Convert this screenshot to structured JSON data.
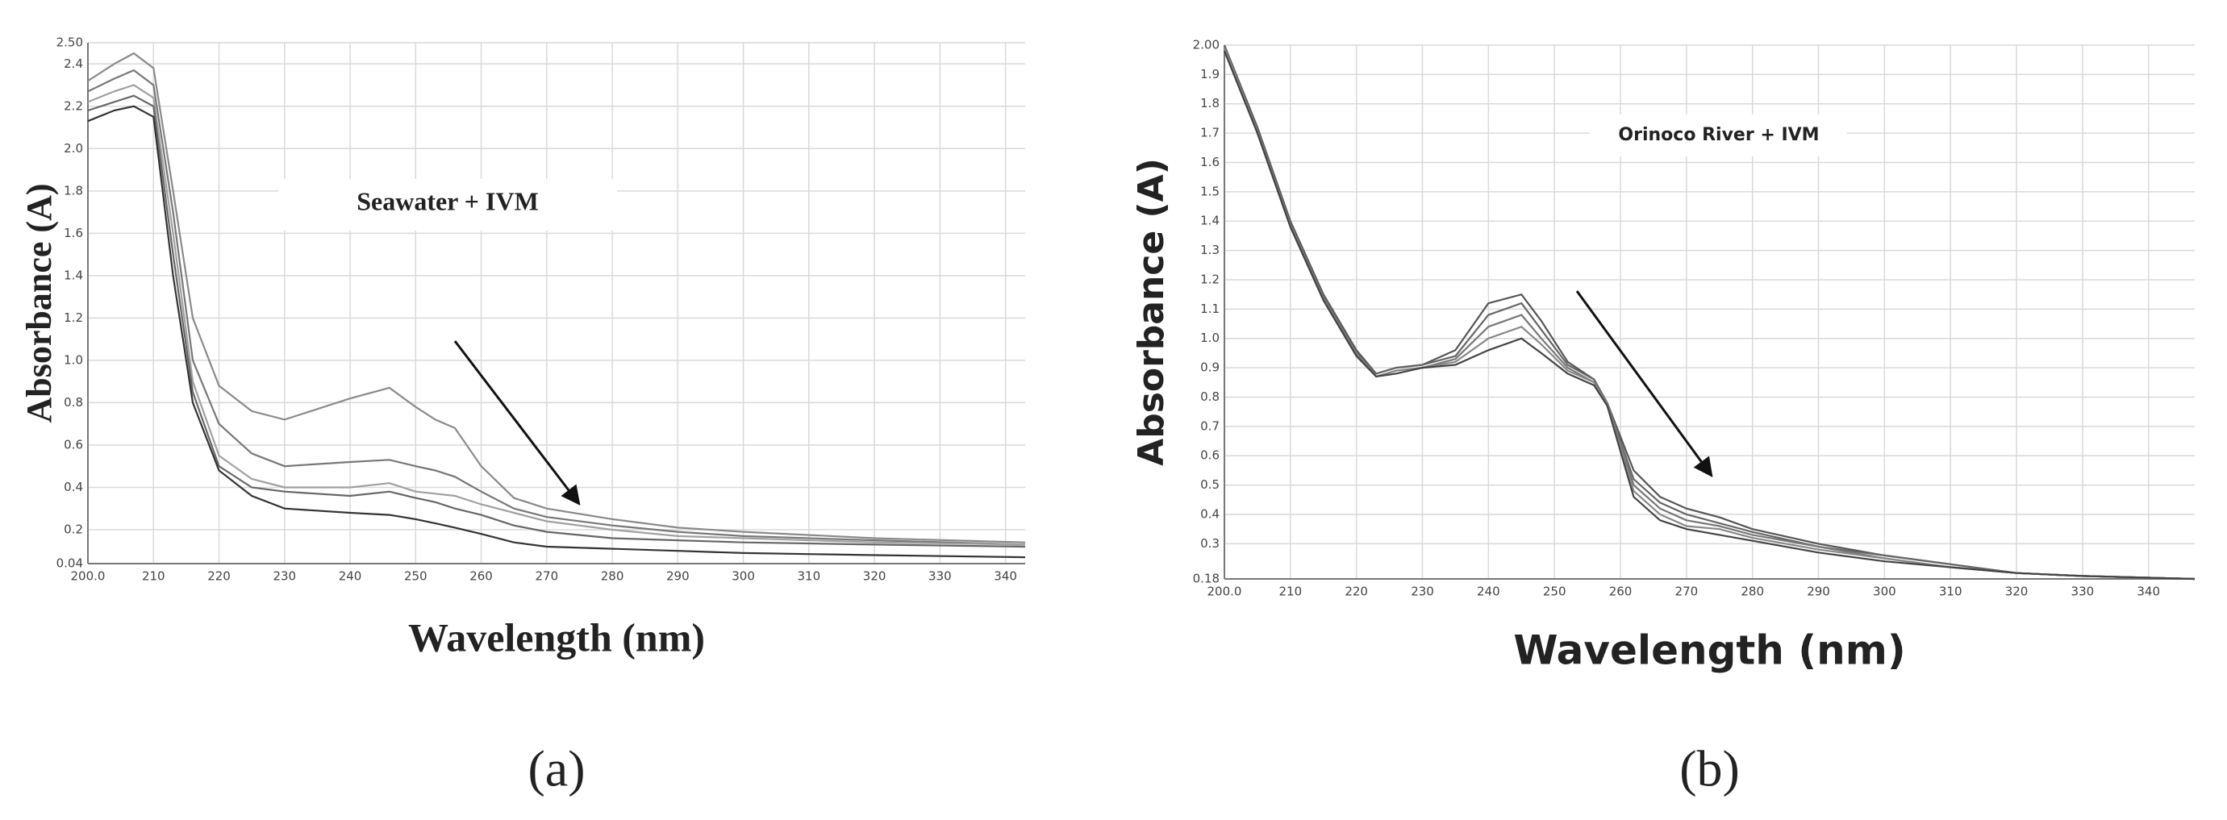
{
  "chart_data": [
    {
      "type": "line",
      "annotation": "Seawater + IVM",
      "y_label": "Absorbance (A)",
      "x_label": "Wavelength (nm)",
      "caption": "(a)",
      "grid": true,
      "xlim": [
        200,
        343
      ],
      "ylim": [
        0.04,
        2.5
      ],
      "xticks": [
        {
          "value": 200,
          "label": "200.0"
        },
        210,
        220,
        230,
        240,
        250,
        260,
        270,
        280,
        290,
        300,
        310,
        320,
        330,
        340
      ],
      "yticks": [
        0.04,
        0.2,
        0.4,
        0.6,
        0.8,
        {
          "value": 1,
          "label": "1.0"
        },
        1.2,
        1.4,
        1.6,
        1.8,
        {
          "value": 2,
          "label": "2.0"
        },
        2.2,
        2.4,
        {
          "value": 2.5,
          "label": "2.50"
        }
      ],
      "x": [
        200,
        204,
        207,
        210,
        213,
        216,
        220,
        225,
        230,
        240,
        246,
        250,
        253,
        256,
        260,
        265,
        270,
        280,
        290,
        300,
        320,
        343
      ],
      "series": [
        {
          "color": "#8a8a8a",
          "values": [
            2.32,
            2.4,
            2.45,
            2.38,
            1.8,
            1.2,
            0.88,
            0.76,
            0.72,
            0.82,
            0.87,
            0.78,
            0.72,
            0.68,
            0.5,
            0.35,
            0.3,
            0.25,
            0.21,
            0.19,
            0.16,
            0.14
          ]
        },
        {
          "color": "#777777",
          "values": [
            2.27,
            2.33,
            2.37,
            2.3,
            1.7,
            1.0,
            0.7,
            0.56,
            0.5,
            0.52,
            0.53,
            0.5,
            0.48,
            0.45,
            0.38,
            0.3,
            0.26,
            0.22,
            0.19,
            0.17,
            0.15,
            0.13
          ]
        },
        {
          "color": "#a0a0a0",
          "values": [
            2.22,
            2.27,
            2.3,
            2.24,
            1.6,
            0.9,
            0.55,
            0.44,
            0.4,
            0.4,
            0.42,
            0.38,
            0.37,
            0.36,
            0.32,
            0.28,
            0.24,
            0.2,
            0.17,
            0.16,
            0.14,
            0.13
          ]
        },
        {
          "color": "#666666",
          "values": [
            2.18,
            2.22,
            2.25,
            2.2,
            1.5,
            0.85,
            0.5,
            0.4,
            0.38,
            0.36,
            0.38,
            0.35,
            0.33,
            0.3,
            0.27,
            0.22,
            0.19,
            0.16,
            0.15,
            0.14,
            0.13,
            0.12
          ]
        },
        {
          "color": "#333333",
          "values": [
            2.13,
            2.18,
            2.2,
            2.15,
            1.4,
            0.8,
            0.48,
            0.36,
            0.3,
            0.28,
            0.27,
            0.25,
            0.23,
            0.21,
            0.18,
            0.14,
            0.12,
            0.11,
            0.1,
            0.09,
            0.08,
            0.07
          ]
        }
      ]
    },
    {
      "type": "line",
      "annotation": "Orinoco River + IVM",
      "y_label": "Absorbance (A)",
      "x_label": "Wavelength (nm)",
      "caption": "(b)",
      "grid": true,
      "xlim": [
        200,
        347
      ],
      "ylim": [
        0.18,
        2.0
      ],
      "xticks": [
        {
          "value": 200,
          "label": "200.0"
        },
        210,
        220,
        230,
        240,
        250,
        260,
        270,
        280,
        290,
        300,
        310,
        320,
        330,
        340
      ],
      "yticks": [
        0.18,
        0.3,
        0.4,
        0.5,
        0.6,
        0.7,
        0.8,
        0.9,
        {
          "value": 1,
          "label": "1.0"
        },
        1.1,
        1.2,
        1.3,
        1.4,
        1.5,
        1.6,
        1.7,
        1.8,
        1.9,
        {
          "value": 2,
          "label": "2.00"
        }
      ],
      "x": [
        200,
        205,
        210,
        215,
        220,
        223,
        226,
        230,
        235,
        240,
        245,
        248,
        252,
        256,
        258,
        262,
        266,
        270,
        275,
        280,
        290,
        300,
        310,
        320,
        330,
        347
      ],
      "series": [
        {
          "color": "#555555",
          "values": [
            2.0,
            1.72,
            1.4,
            1.15,
            0.96,
            0.88,
            0.9,
            0.91,
            0.96,
            1.12,
            1.15,
            1.06,
            0.92,
            0.86,
            0.78,
            0.55,
            0.46,
            0.42,
            0.39,
            0.35,
            0.3,
            0.26,
            0.23,
            0.2,
            0.19,
            0.18
          ]
        },
        {
          "color": "#666666",
          "values": [
            2.0,
            1.71,
            1.39,
            1.14,
            0.95,
            0.88,
            0.9,
            0.91,
            0.94,
            1.08,
            1.12,
            1.03,
            0.91,
            0.86,
            0.78,
            0.52,
            0.44,
            0.4,
            0.37,
            0.34,
            0.29,
            0.26,
            0.23,
            0.2,
            0.19,
            0.18
          ]
        },
        {
          "color": "#777777",
          "values": [
            1.99,
            1.71,
            1.39,
            1.14,
            0.95,
            0.87,
            0.89,
            0.9,
            0.93,
            1.04,
            1.08,
            1.0,
            0.9,
            0.85,
            0.78,
            0.5,
            0.42,
            0.38,
            0.36,
            0.33,
            0.29,
            0.25,
            0.22,
            0.2,
            0.19,
            0.18
          ]
        },
        {
          "color": "#888888",
          "values": [
            1.99,
            1.7,
            1.38,
            1.13,
            0.94,
            0.87,
            0.89,
            0.9,
            0.92,
            1.0,
            1.04,
            0.98,
            0.89,
            0.85,
            0.77,
            0.48,
            0.4,
            0.36,
            0.35,
            0.32,
            0.28,
            0.25,
            0.22,
            0.2,
            0.19,
            0.18
          ]
        },
        {
          "color": "#444444",
          "values": [
            1.98,
            1.7,
            1.38,
            1.13,
            0.94,
            0.87,
            0.88,
            0.9,
            0.91,
            0.96,
            1.0,
            0.95,
            0.88,
            0.84,
            0.77,
            0.46,
            0.38,
            0.35,
            0.33,
            0.31,
            0.27,
            0.24,
            0.22,
            0.2,
            0.19,
            0.18
          ]
        }
      ]
    }
  ]
}
